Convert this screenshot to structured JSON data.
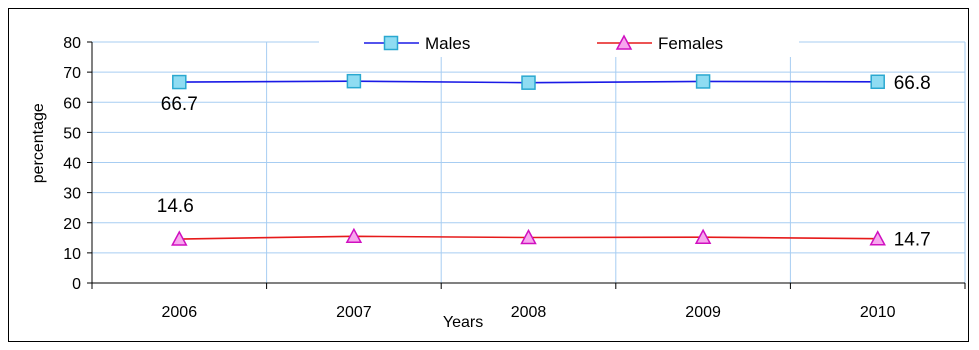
{
  "chart_data": {
    "type": "line",
    "title": "",
    "xlabel": "Years",
    "ylabel": "percentage",
    "categories": [
      "2006",
      "2007",
      "2008",
      "2009",
      "2010"
    ],
    "ylim": [
      0,
      80
    ],
    "yticks": [
      "0",
      "10",
      "20",
      "30",
      "40",
      "50",
      "60",
      "70",
      "80"
    ],
    "grid": true,
    "legend_position": "top",
    "series": [
      {
        "name": "Males",
        "values": [
          66.7,
          67.0,
          66.5,
          66.9,
          66.8
        ],
        "color": "#1a1ae6",
        "marker_fill": "#8fdcf2",
        "marker_stroke": "#2aa8d0",
        "marker": "square",
        "labels": {
          "0": "66.7",
          "4": "66.8"
        }
      },
      {
        "name": "Females",
        "values": [
          14.6,
          15.5,
          15.1,
          15.2,
          14.7
        ],
        "color": "#e61a1a",
        "marker_fill": "#f7a6ee",
        "marker_stroke": "#d010c0",
        "marker": "triangle",
        "labels": {
          "0": "14.6",
          "4": "14.7"
        }
      }
    ],
    "gridline_color": "#a7cdf2"
  }
}
